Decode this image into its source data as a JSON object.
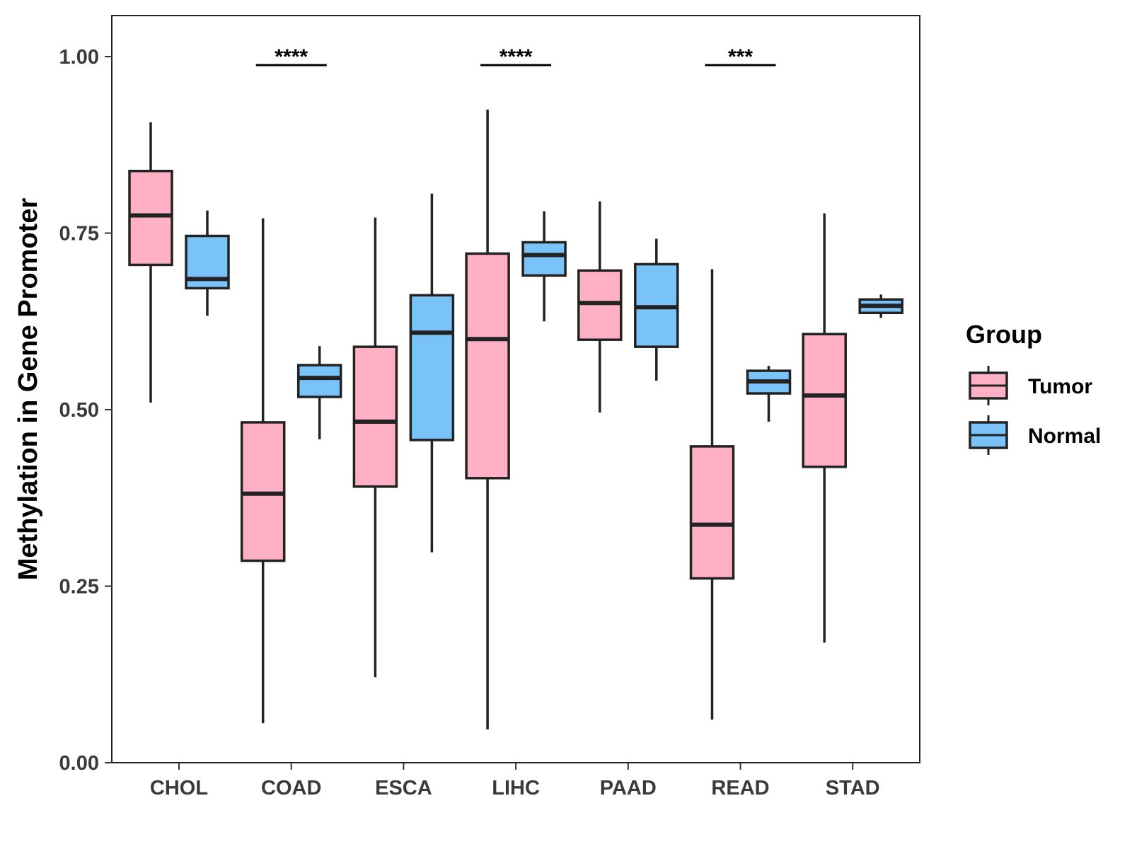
{
  "chart_data": {
    "type": "boxplot",
    "title": "",
    "xlabel": "",
    "ylabel": "Methylation in Gene Promoter",
    "ylim": [
      0,
      1.05
    ],
    "yticks": [
      "0.00",
      "0.25",
      "0.50",
      "0.75",
      "1.00"
    ],
    "ytick_values": [
      0,
      0.25,
      0.5,
      0.75,
      1.0
    ],
    "categories": [
      "CHOL",
      "COAD",
      "ESCA",
      "LIHC",
      "PAAD",
      "READ",
      "STAD"
    ],
    "series": [
      {
        "name": "Tumor",
        "color": "#FFB0C4",
        "boxes": [
          {
            "min": 0.51,
            "q1": 0.705,
            "median": 0.775,
            "q3": 0.838,
            "max": 0.907
          },
          {
            "min": 0.056,
            "q1": 0.286,
            "median": 0.381,
            "q3": 0.482,
            "max": 0.771
          },
          {
            "min": 0.121,
            "q1": 0.391,
            "median": 0.483,
            "q3": 0.589,
            "max": 0.772
          },
          {
            "min": 0.047,
            "q1": 0.403,
            "median": 0.6,
            "q3": 0.721,
            "max": 0.925
          },
          {
            "min": 0.496,
            "q1": 0.599,
            "median": 0.651,
            "q3": 0.697,
            "max": 0.795
          },
          {
            "min": 0.061,
            "q1": 0.261,
            "median": 0.337,
            "q3": 0.448,
            "max": 0.699
          },
          {
            "min": 0.17,
            "q1": 0.419,
            "median": 0.52,
            "q3": 0.607,
            "max": 0.778
          }
        ]
      },
      {
        "name": "Normal",
        "color": "#7AC3F8",
        "boxes": [
          {
            "min": 0.633,
            "q1": 0.672,
            "median": 0.685,
            "q3": 0.746,
            "max": 0.782
          },
          {
            "min": 0.458,
            "q1": 0.518,
            "median": 0.545,
            "q3": 0.563,
            "max": 0.59
          },
          {
            "min": 0.298,
            "q1": 0.457,
            "median": 0.609,
            "q3": 0.662,
            "max": 0.806
          },
          {
            "min": 0.625,
            "q1": 0.69,
            "median": 0.719,
            "q3": 0.737,
            "max": 0.781
          },
          {
            "min": 0.541,
            "q1": 0.589,
            "median": 0.645,
            "q3": 0.706,
            "max": 0.742
          },
          {
            "min": 0.483,
            "q1": 0.523,
            "median": 0.54,
            "q3": 0.555,
            "max": 0.562
          },
          {
            "min": 0.63,
            "q1": 0.637,
            "median": 0.647,
            "q3": 0.656,
            "max": 0.663
          }
        ]
      }
    ],
    "significance": [
      {
        "category": "COAD",
        "label": "****",
        "y": 0.988
      },
      {
        "category": "LIHC",
        "label": "****",
        "y": 0.988
      },
      {
        "category": "READ",
        "label": "***",
        "y": 0.988
      }
    ],
    "legend": {
      "title": "Group",
      "position": "right",
      "entries": [
        "Tumor",
        "Normal"
      ]
    },
    "grid": false
  }
}
